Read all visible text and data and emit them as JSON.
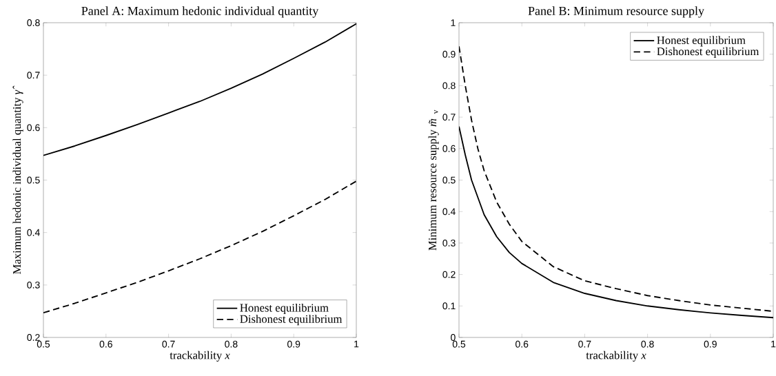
{
  "chart_data": [
    {
      "type": "line",
      "title": "Panel A: Maximum hedonic individual quantity",
      "xlabel": "trackability *x*",
      "ylabel": "Maximum hedonic individual quantity *γ̂*",
      "xlim": [
        0.5,
        1
      ],
      "ylim": [
        0.2,
        0.8
      ],
      "xticks": [
        0.5,
        0.6,
        0.7,
        0.8,
        0.9,
        1
      ],
      "yticks": [
        0.2,
        0.3,
        0.4,
        0.5,
        0.6,
        0.7,
        0.8
      ],
      "grid": false,
      "legend": "bottom right",
      "series": [
        {
          "name": "Honest equilibrium",
          "color": "#000000",
          "line_style": "solid",
          "x": [
            0.5,
            0.55,
            0.6,
            0.65,
            0.7,
            0.75,
            0.8,
            0.85,
            0.9,
            0.95,
            1.0
          ],
          "values": [
            0.547,
            0.565,
            0.585,
            0.606,
            0.628,
            0.65,
            0.675,
            0.702,
            0.732,
            0.763,
            0.798
          ]
        },
        {
          "name": "Dishonest equilibrium",
          "color": "#000000",
          "line_style": "dashed",
          "x": [
            0.5,
            0.55,
            0.6,
            0.65,
            0.7,
            0.75,
            0.8,
            0.85,
            0.9,
            0.95,
            1.0
          ],
          "values": [
            0.247,
            0.265,
            0.285,
            0.305,
            0.327,
            0.35,
            0.375,
            0.402,
            0.432,
            0.463,
            0.498
          ]
        }
      ]
    },
    {
      "type": "line",
      "title": "Panel B: Minimum resource supply",
      "xlabel": "trackability *x*",
      "ylabel": "Minimum resource supply *m̃*$_{v}$",
      "xlim": [
        0.5,
        1
      ],
      "ylim": [
        0,
        1
      ],
      "xticks": [
        0.5,
        0.6,
        0.7,
        0.8,
        0.9,
        1
      ],
      "yticks": [
        0,
        0.1,
        0.2,
        0.3,
        0.4,
        0.5,
        0.6,
        0.7,
        0.8,
        0.9,
        1
      ],
      "grid": false,
      "legend": "top right",
      "series": [
        {
          "name": "Honest equilibrium",
          "color": "#000000",
          "line_style": "solid",
          "x": [
            0.5,
            0.51,
            0.52,
            0.54,
            0.56,
            0.58,
            0.6,
            0.65,
            0.7,
            0.75,
            0.8,
            0.85,
            0.9,
            0.95,
            1.0
          ],
          "values": [
            0.67,
            0.58,
            0.5,
            0.39,
            0.32,
            0.27,
            0.235,
            0.175,
            0.14,
            0.117,
            0.1,
            0.088,
            0.078,
            0.07,
            0.063
          ]
        },
        {
          "name": "Dishonest equilibrium",
          "color": "#000000",
          "line_style": "dashed",
          "x": [
            0.5,
            0.51,
            0.52,
            0.53,
            0.54,
            0.56,
            0.58,
            0.6,
            0.65,
            0.7,
            0.75,
            0.8,
            0.85,
            0.9,
            0.95,
            1.0
          ],
          "values": [
            0.925,
            0.8,
            0.69,
            0.6,
            0.53,
            0.43,
            0.36,
            0.305,
            0.225,
            0.18,
            0.155,
            0.133,
            0.117,
            0.103,
            0.093,
            0.083
          ]
        }
      ]
    }
  ]
}
